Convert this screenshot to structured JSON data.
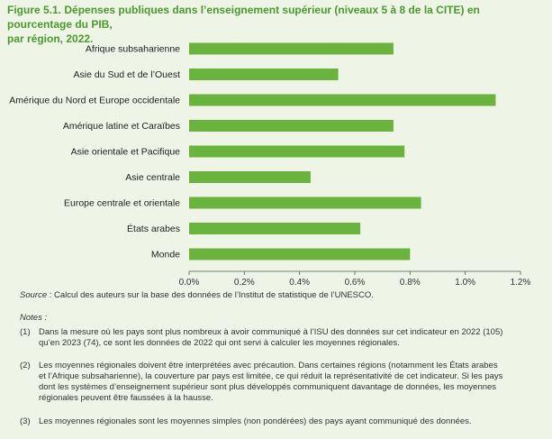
{
  "figure": {
    "title_line1": "Figure 5.1. Dépenses publiques dans l’enseignement supérieur (niveaux 5 à 8 de la CITE) en pourcentage du PIB,",
    "title_line2": "par région, 2022.",
    "source_label": "Source",
    "source_text": " : Calcul des auteurs sur la base des données de l’Institut de statistique de l’UNESCO.",
    "notes_title": "Notes :",
    "notes": [
      {
        "num": "(1)",
        "lines": [
          "Dans la mesure où les pays sont plus nombreux à avoir communiqué à l’ISU des données sur cet indicateur en 2022 (105)",
          "qu’en 2023 (74), ce sont les données de 2022 qui ont servi à calculer les moyennes régionales."
        ]
      },
      {
        "num": "(2)",
        "lines": [
          "Les moyennes régionales doivent être interprétées avec précaution. Dans certaines régions (notamment les États arabes",
          "et l’Afrique subsaharienne), la couverture par pays est limitée, ce qui réduit la représentativité de cet indicateur. Si les pays",
          "dont les systèmes d’enseignement supérieur sont plus développés communiquent davantage de données, les moyennes",
          "régionales peuvent être faussées à la hausse."
        ]
      },
      {
        "num": "(3)",
        "lines": [
          "Les moyennes régionales sont les moyennes simples (non pondérées) des pays ayant communiqué des données."
        ]
      }
    ]
  },
  "colors": {
    "bar": "#6ab43e",
    "title": "#4a9a2c",
    "panel": "#eef5e6",
    "axis": "#555555"
  },
  "chart_data": {
    "type": "bar",
    "orientation": "horizontal",
    "categories": [
      "Afrique subsaharienne",
      "Asie du Sud et de l’Ouest",
      "Amérique du Nord et Europe occidentale",
      "Amérique latine et Caraïbes",
      "Asie orientale et Pacifique",
      "Asie centrale",
      "Europe centrale et orientale",
      "États arabes",
      "Monde"
    ],
    "values": [
      0.74,
      0.54,
      1.11,
      0.74,
      0.78,
      0.44,
      0.84,
      0.62,
      0.8
    ],
    "unit": "%",
    "xlim": [
      0,
      1.2
    ],
    "ticks": [
      0,
      0.2,
      0.4,
      0.6,
      0.8,
      1.0,
      1.2
    ],
    "tick_labels": [
      "0.0%",
      "0.2%",
      "0.4%",
      "0.6%",
      "0.8%",
      "1.0%",
      "1.2%"
    ],
    "grid": false
  }
}
